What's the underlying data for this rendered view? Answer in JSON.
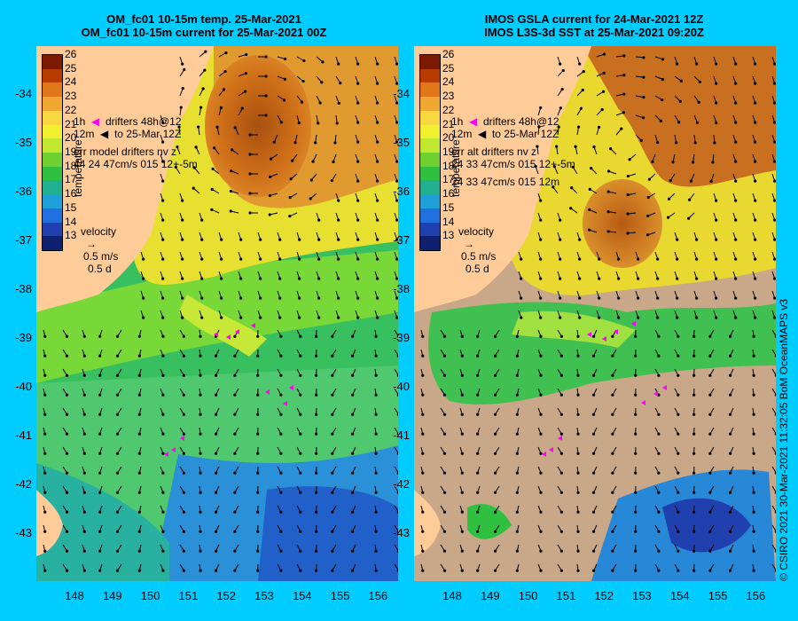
{
  "left_panel": {
    "title_line1": "OM_fc01 10-15m temp. 25-Mar-2021",
    "title_line2": "OM_fc01 10-15m current for 25-Mar-2021 00Z",
    "colorbar_title": "temperature",
    "legend": {
      "drifters": "drifters 48h@12",
      "to_date": "to 25-Mar 12Z",
      "err_title": "err model drifters nv z",
      "err_values": "44 24 47cm/s 015 12+-5m",
      "err_values_2": "",
      "velocity_title": "velocity",
      "velocity_scale": "0.5 m/s",
      "velocity_days": "0.5 d",
      "h_label": "1h",
      "z_label": "12m"
    }
  },
  "right_panel": {
    "title_line1": "IMOS GSLA current for 24-Mar-2021 12Z",
    "title_line2": "IMOS L3S-3d SST at 25-Mar-2021 09:20Z",
    "colorbar_title": "temperature",
    "legend": {
      "drifters": "drifters 48h@12",
      "to_date": "to 25-Mar 12Z",
      "err_title": "err alt drifters nv z",
      "err_values": "24 33 47cm/s 015 12+-5m",
      "err_values_2": "24 33 47cm/s 015 12m",
      "velocity_title": "velocity",
      "velocity_scale": "0.5 m/s",
      "velocity_days": "0.5 d",
      "h_label": "1h",
      "z_label": "12m"
    }
  },
  "colorbar_ticks": [
    "26",
    "25",
    "24",
    "23",
    "22",
    "21",
    "20",
    "19",
    "18",
    "17",
    "16",
    "15",
    "14",
    "13"
  ],
  "colorbar_colors": [
    "#7a1a00",
    "#b83c00",
    "#e0781a",
    "#f0a830",
    "#f8d840",
    "#f0f030",
    "#c0e830",
    "#70d030",
    "#30c040",
    "#20b090",
    "#20a0d8",
    "#2070e0",
    "#2040b0",
    "#102070"
  ],
  "y_ticks": [
    "-34",
    "-35",
    "-36",
    "-37",
    "-38",
    "-39",
    "-40",
    "-41",
    "-42",
    "-43"
  ],
  "x_ticks": [
    "148",
    "149",
    "150",
    "151",
    "152",
    "153",
    "154",
    "155",
    "156"
  ],
  "side_text": "© CSIRO 2021   30-Mar-2021 11:32:05 BoM OceanMAPS v3",
  "colors": {
    "page_background": "#00ccff",
    "land": "#ffcc99",
    "no_data": "#c8a888",
    "drifter": "#ff00ff"
  }
}
